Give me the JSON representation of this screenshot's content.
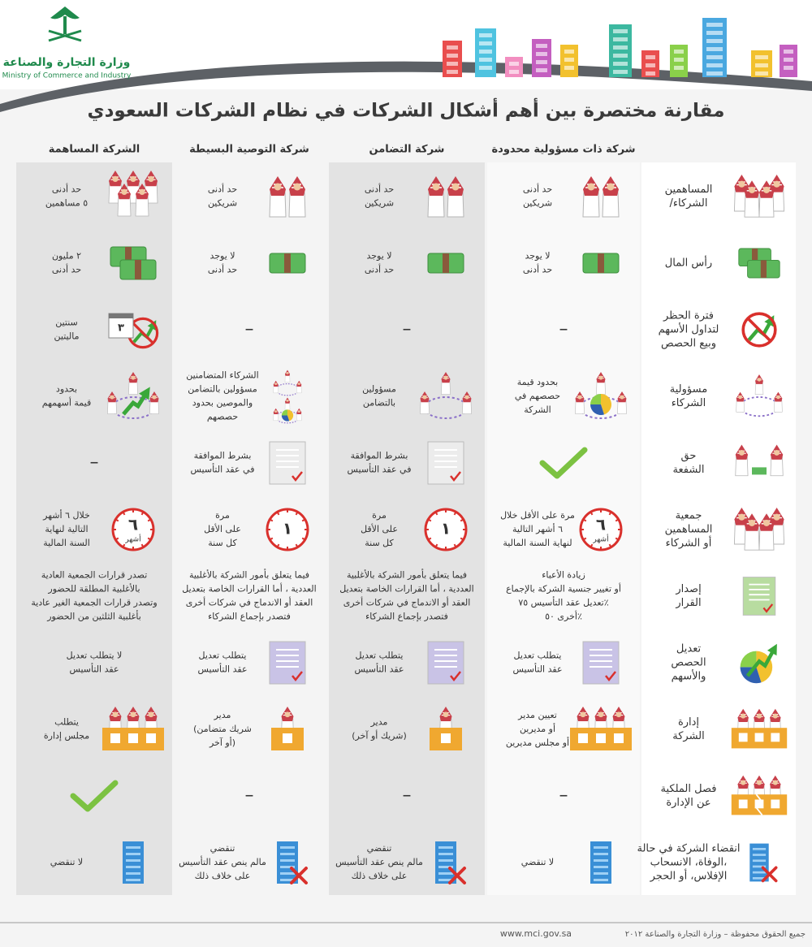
{
  "header": {
    "ministry_ar": "وزارة التجارة والصناعة",
    "ministry_en": "Ministry of Commerce and Industry",
    "title": "مقارنة مختصرة بين أهم أشكال الشركات في نظام الشركات السعودي"
  },
  "columns": [
    "شركة ذات مسؤولية محدودة",
    "شركة التضامن",
    "شركة التوصية البسيطة",
    "الشركة المساهمة"
  ],
  "rows": [
    {
      "label": [
        "المساهمين",
        "/الشركاء"
      ],
      "icon": "people4",
      "cells": [
        {
          "lines": [
            "حد أدنى",
            "شريكين"
          ],
          "icon": "people2"
        },
        {
          "lines": [
            "حد أدنى",
            "شريكين"
          ],
          "icon": "people2"
        },
        {
          "lines": [
            "حد أدنى",
            "شريكين"
          ],
          "icon": "people2"
        },
        {
          "lines": [
            "حد أدنى",
            "٥ مساهمين"
          ],
          "icon": "people5"
        }
      ]
    },
    {
      "label": [
        "رأس المال"
      ],
      "icon": "money2",
      "cells": [
        {
          "lines": [
            "لا يوجد",
            "حد أدنى"
          ],
          "icon": "money"
        },
        {
          "lines": [
            "لا يوجد",
            "حد أدنى"
          ],
          "icon": "money"
        },
        {
          "lines": [
            "لا يوجد",
            "حد أدنى"
          ],
          "icon": "money"
        },
        {
          "lines": [
            "٢ مليون",
            "حد أدنى"
          ],
          "icon": "money2"
        }
      ]
    },
    {
      "label": [
        "فترة الحظر",
        "لتداول الأسهم",
        "وبيع الحصص"
      ],
      "icon": "noban",
      "cells": [
        {
          "lines": [
            "–"
          ]
        },
        {
          "lines": [
            "–"
          ]
        },
        {
          "lines": [
            "–"
          ]
        },
        {
          "lines": [
            "سنتين",
            "ماليتين"
          ],
          "icon": "calendar",
          "icon_text": "٣"
        }
      ]
    },
    {
      "label": [
        "مسؤولية",
        "الشركاء"
      ],
      "icon": "circle",
      "cells": [
        {
          "lines": [
            "بحدود قيمة",
            "حصصهم في",
            "الشركة"
          ],
          "icon": "circle_pie"
        },
        {
          "lines": [
            "مسؤولين",
            "بالتضامن"
          ],
          "icon": "circle"
        },
        {
          "lines": [
            "الشركاء المتضامنين",
            "مسؤولين بالتضامن",
            "والموصين بحدود",
            "حصصهم"
          ],
          "icon": "circle_small"
        },
        {
          "lines": [
            "بحدود",
            "قيمة أسهمهم"
          ],
          "icon": "circle_arrow"
        }
      ]
    },
    {
      "label": [
        "حق",
        "الشفعة"
      ],
      "icon": "people_money",
      "cells": [
        {
          "icon": "check"
        },
        {
          "lines": [
            "بشرط الموافقة",
            "في عقد التأسيس"
          ],
          "icon": "doc_check"
        },
        {
          "lines": [
            "بشرط الموافقة",
            "في عقد التأسيس"
          ],
          "icon": "doc_check"
        },
        {
          "lines": [
            "–"
          ]
        }
      ]
    },
    {
      "label": [
        "جمعية",
        "المساهمين",
        "أو الشركاء"
      ],
      "icon": "people4",
      "cells": [
        {
          "lines": [
            "مرة على الأقل خلال",
            "٦ أشهر التالية",
            "لنهاية السنة المالية"
          ],
          "icon": "clock",
          "icon_text": "٦",
          "icon_sub": "أشهر"
        },
        {
          "lines": [
            "مرة",
            "على الأقل",
            "كل سنة"
          ],
          "icon": "clock",
          "icon_text": "١"
        },
        {
          "lines": [
            "مرة",
            "على الأقل",
            "كل سنة"
          ],
          "icon": "clock",
          "icon_text": "١"
        },
        {
          "lines": [
            "خلال ٦ أشهر",
            "التالية لنهاية",
            "السنة المالية"
          ],
          "icon": "clock",
          "icon_text": "٦",
          "icon_sub": "أشهر"
        }
      ]
    },
    {
      "label": [
        "إصدار",
        "القرار"
      ],
      "icon": "paper",
      "cells": [
        {
          "lines": [
            "زيادة الأعباء",
            "أو تغيير جنسية الشركة بالإجماع",
            "تعديل عقد التأسيس ٧٥٪",
            "أخرى ٥٠٪"
          ]
        },
        {
          "lines": [
            "فيما يتعلق بأمور الشركة بالأغلبية",
            "العددية ، أما القرارات الخاصة بتعديل",
            "العقد أو الاندماج في شركات أخرى",
            "فتصدر بإجماع الشركاء"
          ]
        },
        {
          "lines": [
            "فيما يتعلق بأمور الشركة بالأغلبية",
            "العددية ، أما القرارات الخاصة بتعديل",
            "العقد أو الاندماج في شركات أخرى",
            "فتصدر بإجماع الشركاء"
          ]
        },
        {
          "lines": [
            "تصدر قرارات الجمعية العادية",
            "بالأغلبية المطلقة للحضور",
            "وتصدر قرارات الجمعية الغير عادية",
            "بأغلبية الثلثين من الحضور"
          ]
        }
      ]
    },
    {
      "label": [
        "تعديل",
        "الحصص",
        "والأسهم"
      ],
      "icon": "pie_arrow",
      "cells": [
        {
          "lines": [
            "يتطلب تعديل",
            "عقد التأسيس"
          ],
          "icon": "purple_doc"
        },
        {
          "lines": [
            "يتطلب تعديل",
            "عقد التأسيس"
          ],
          "icon": "purple_doc"
        },
        {
          "lines": [
            "يتطلب تعديل",
            "عقد التأسيس"
          ],
          "icon": "purple_doc"
        },
        {
          "lines": [
            "لا يتطلب تعديل",
            "عقد التأسيس"
          ]
        }
      ]
    },
    {
      "label": [
        "إدارة",
        "الشركة"
      ],
      "icon": "box3",
      "cells": [
        {
          "lines": [
            "تعيين مدير",
            "أو مديرين",
            "أو مجلس مديرين"
          ],
          "icon": "box3"
        },
        {
          "lines": [
            "مدير",
            "(شريك أو آخر)"
          ],
          "icon": "box1"
        },
        {
          "lines": [
            "مدير",
            "(شريك متضامن",
            "أو آخر)"
          ],
          "icon": "box1"
        },
        {
          "lines": [
            "يتطلب",
            "مجلس إدارة"
          ],
          "icon": "box3"
        }
      ]
    },
    {
      "label": [
        "فصل الملكية",
        "عن الإدارة"
      ],
      "icon": "box_split",
      "cells": [
        {
          "lines": [
            "–"
          ]
        },
        {
          "lines": [
            "–"
          ]
        },
        {
          "lines": [
            "–"
          ]
        },
        {
          "icon": "check"
        }
      ]
    },
    {
      "label": [
        "انقضاء الشركة في حالة",
        "الوفاة، الانسحاب،",
        "الإفلاس، أو الحجر"
      ],
      "icon": "building_x",
      "cells": [
        {
          "lines": [
            "لا تنقضي"
          ],
          "icon": "building"
        },
        {
          "lines": [
            "تنقضي",
            "مالم ينص عقد التأسيس",
            "على خلاف ذلك"
          ],
          "icon": "building_x"
        },
        {
          "lines": [
            "تنقضي",
            "مالم ينص عقد التأسيس",
            "على خلاف ذلك"
          ],
          "icon": "building_x"
        },
        {
          "lines": [
            "لا تنقضي"
          ],
          "icon": "building"
        }
      ]
    }
  ],
  "footer": {
    "url": "www.mci.gov.sa",
    "rights": "جميع الحقوق محفوظة – وزارة التجارة والصناعة ٢٠١٢"
  }
}
